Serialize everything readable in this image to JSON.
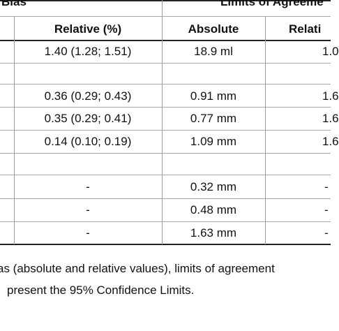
{
  "table": {
    "group_headers": {
      "bias": "Bias",
      "limits": "Limits of Agreeme"
    },
    "sub_headers": {
      "relative_pct": "Relative (%)",
      "absolute": "Absolute",
      "relative_cut": "Relati"
    },
    "rows": [
      {
        "bias_relative": "1.40 (1.28; 1.51)",
        "loa_absolute": "18.9 ml",
        "loa_relative": "1.0"
      },
      {
        "bias_relative": "",
        "loa_absolute": "",
        "loa_relative": ""
      },
      {
        "bias_relative": "0.36 (0.29; 0.43)",
        "loa_absolute": "0.91 mm",
        "loa_relative": "1.6"
      },
      {
        "bias_relative": "0.35 (0.29; 0.41)",
        "loa_absolute": "0.77 mm",
        "loa_relative": "1.6"
      },
      {
        "bias_relative": "0.14 (0.10; 0.19)",
        "loa_absolute": "1.09 mm",
        "loa_relative": "1.6"
      },
      {
        "bias_relative": "",
        "loa_absolute": "",
        "loa_relative": ""
      },
      {
        "bias_relative": "-",
        "loa_absolute": "0.32 mm",
        "loa_relative": "-"
      },
      {
        "bias_relative": "-",
        "loa_absolute": "0.48 mm",
        "loa_relative": "-"
      },
      {
        "bias_relative": "-",
        "loa_absolute": "1.63 mm",
        "loa_relative": "-"
      }
    ]
  },
  "footnote": {
    "line1": "as (absolute and relative values), limits of agreement",
    "line2": "present the 95% Confidence Limits."
  }
}
